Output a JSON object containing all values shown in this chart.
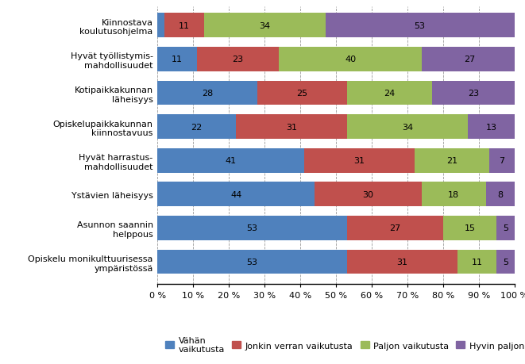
{
  "categories": [
    "Kiinnostava\nkoulutusohjelma",
    "Hyvät työllistymis-\nmahdollisuudet",
    "Kotipaikkakunnan\nläheisyys",
    "Opiskelupaikkakunnan\nkiinnostavuus",
    "Hyvät harrastus-\nmahdollisuudet",
    "Ystävien läheisyys",
    "Asunnon saannin\nhelppous",
    "Opiskelu monikulttuurisessa\nympäristössä"
  ],
  "series": {
    "Vähän\nvaikutusta": [
      2,
      11,
      28,
      22,
      41,
      44,
      53,
      53
    ],
    "Jonkin verran vaikutusta": [
      11,
      23,
      25,
      31,
      31,
      30,
      27,
      31
    ],
    "Paljon vaikutusta": [
      34,
      40,
      24,
      34,
      21,
      18,
      15,
      11
    ],
    "Hyvin paljon vaikutusta": [
      53,
      27,
      23,
      13,
      7,
      8,
      5,
      5
    ]
  },
  "colors": {
    "Vähän\nvaikutusta": "#4f81bd",
    "Jonkin verran vaikutusta": "#c0504d",
    "Paljon vaikutusta": "#9bbb59",
    "Hyvin paljon vaikutusta": "#8064a2"
  },
  "legend_labels": [
    "Vähän\nvaikutusta",
    "Jonkin verran vaikutusta",
    "Paljon vaikutusta",
    "Hyvin paljon vaikutusta"
  ],
  "background_color": "#ffffff",
  "bar_height": 0.72,
  "label_fontsize": 8,
  "tick_fontsize": 8,
  "ylabel_fontsize": 8
}
